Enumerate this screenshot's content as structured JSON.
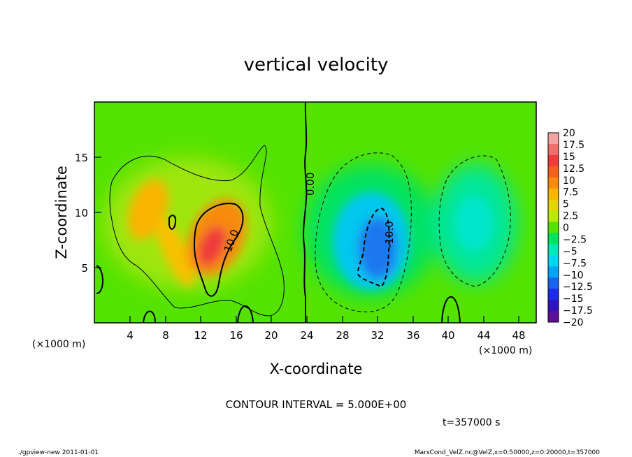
{
  "chart_data": {
    "type": "heatmap",
    "title": "vertical velocity",
    "xlabel": "X-coordinate",
    "ylabel": "Z-coordinate",
    "xlim": [
      0,
      50
    ],
    "ylim": [
      0,
      20
    ],
    "x_ticks": [
      "4",
      "8",
      "12",
      "16",
      "20",
      "24",
      "28",
      "32",
      "36",
      "40",
      "44",
      "48"
    ],
    "y_ticks": [
      "5",
      "10",
      "15"
    ],
    "x_unit": "(×1000 m)",
    "y_unit": "(×1000 m)",
    "colorbar_levels": [
      "20",
      "17.5",
      "15",
      "12.5",
      "10",
      "7.5",
      "5",
      "2.5",
      "0",
      "−2.5",
      "−5",
      "−7.5",
      "−10",
      "−12.5",
      "−15",
      "−17.5",
      "−20"
    ],
    "colorbar_colors": [
      "#f4a3a3",
      "#ef6f6f",
      "#ef3b3b",
      "#f4601d",
      "#f88a10",
      "#f9b400",
      "#e3d400",
      "#b9e80a",
      "#54e300",
      "#00e262",
      "#00e6b6",
      "#00d6f2",
      "#00a4f5",
      "#1b63ef",
      "#1d2ce9",
      "#2f13c0",
      "#5b109a"
    ],
    "contour_labels": [
      "10.0",
      "0.00",
      "-10.0"
    ],
    "contour_interval": "CONTOUR INTERVAL = 5.000E+00",
    "time": "t=357000 s",
    "features": [
      {
        "x": 13.5,
        "z": 7.3,
        "w_max": 15.0
      },
      {
        "x": 6.0,
        "z": 11.0,
        "w_max": 9.0
      },
      {
        "x": 32.0,
        "z": 6.5,
        "w_min": -12.5
      },
      {
        "x": 43.5,
        "z": 8.0,
        "w_min": -6.5
      }
    ]
  },
  "footer": {
    "left": "./gpview-new  2011-01-01",
    "right": "MarsCond_VelZ.nc@VelZ,x=0:50000,z=0:20000,t=357000"
  }
}
